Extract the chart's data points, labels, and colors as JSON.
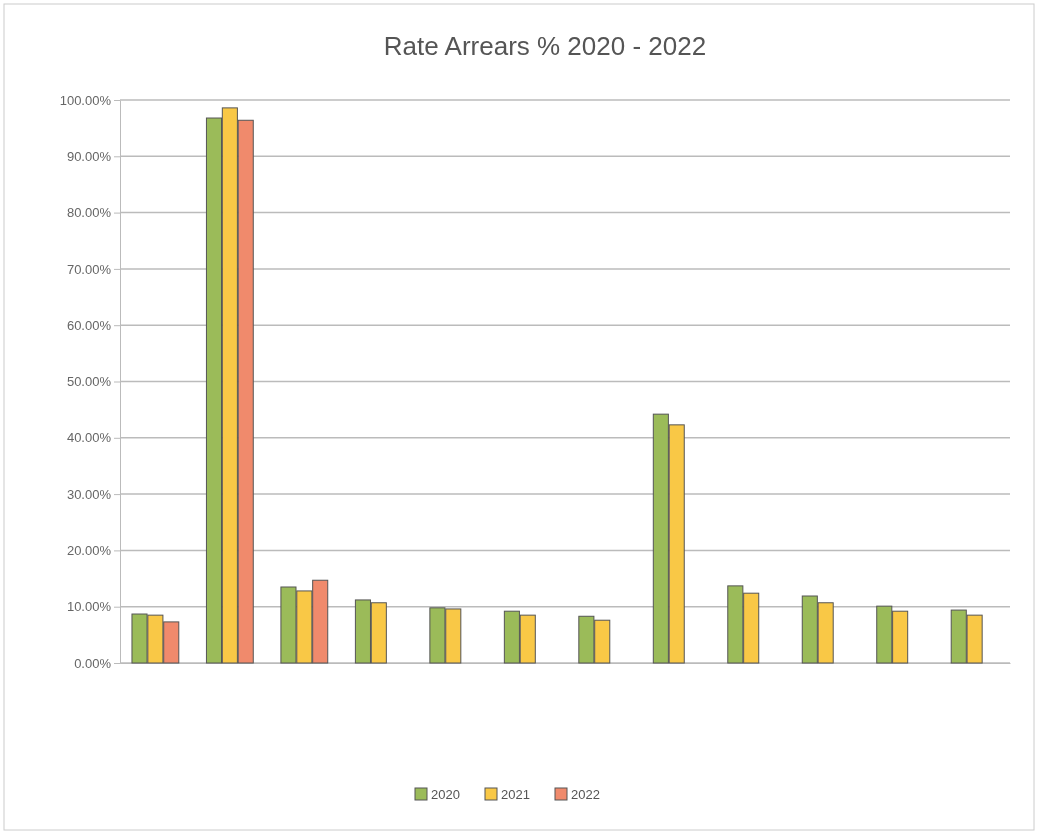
{
  "chart_data": {
    "type": "bar",
    "title": "Rate Arrears % 2020 - 2022",
    "categories": [
      null,
      null,
      null,
      null,
      null,
      null,
      null,
      null,
      null,
      null,
      null,
      null
    ],
    "series": [
      {
        "name": "2020",
        "color": "#9bbb59",
        "values": [
          8.7,
          96.8,
          13.5,
          11.2,
          9.8,
          9.2,
          8.3,
          44.2,
          13.7,
          11.9,
          10.1,
          9.4
        ]
      },
      {
        "name": "2021",
        "color": "#f9c846",
        "values": [
          8.5,
          98.6,
          12.8,
          10.7,
          9.6,
          8.5,
          7.6,
          42.3,
          12.4,
          10.7,
          9.2,
          8.5
        ]
      },
      {
        "name": "2022",
        "color": "#f08a6c",
        "values": [
          7.3,
          96.4,
          14.7,
          null,
          null,
          null,
          null,
          null,
          null,
          null,
          null,
          null
        ]
      }
    ],
    "ylim": [
      0,
      100
    ],
    "yticks": [
      {
        "value": 0,
        "label": "0.00%"
      },
      {
        "value": 10,
        "label": "10.00%"
      },
      {
        "value": 20,
        "label": "20.00%"
      },
      {
        "value": 30,
        "label": "30.00%"
      },
      {
        "value": 40,
        "label": "40.00%"
      },
      {
        "value": 50,
        "label": "50.00%"
      },
      {
        "value": 60,
        "label": "60.00%"
      },
      {
        "value": 70,
        "label": "70.00%"
      },
      {
        "value": 80,
        "label": "80.00%"
      },
      {
        "value": 90,
        "label": "90.00%"
      },
      {
        "value": 100,
        "label": "100.00%"
      }
    ],
    "grid": "y",
    "legend": "bottom"
  }
}
